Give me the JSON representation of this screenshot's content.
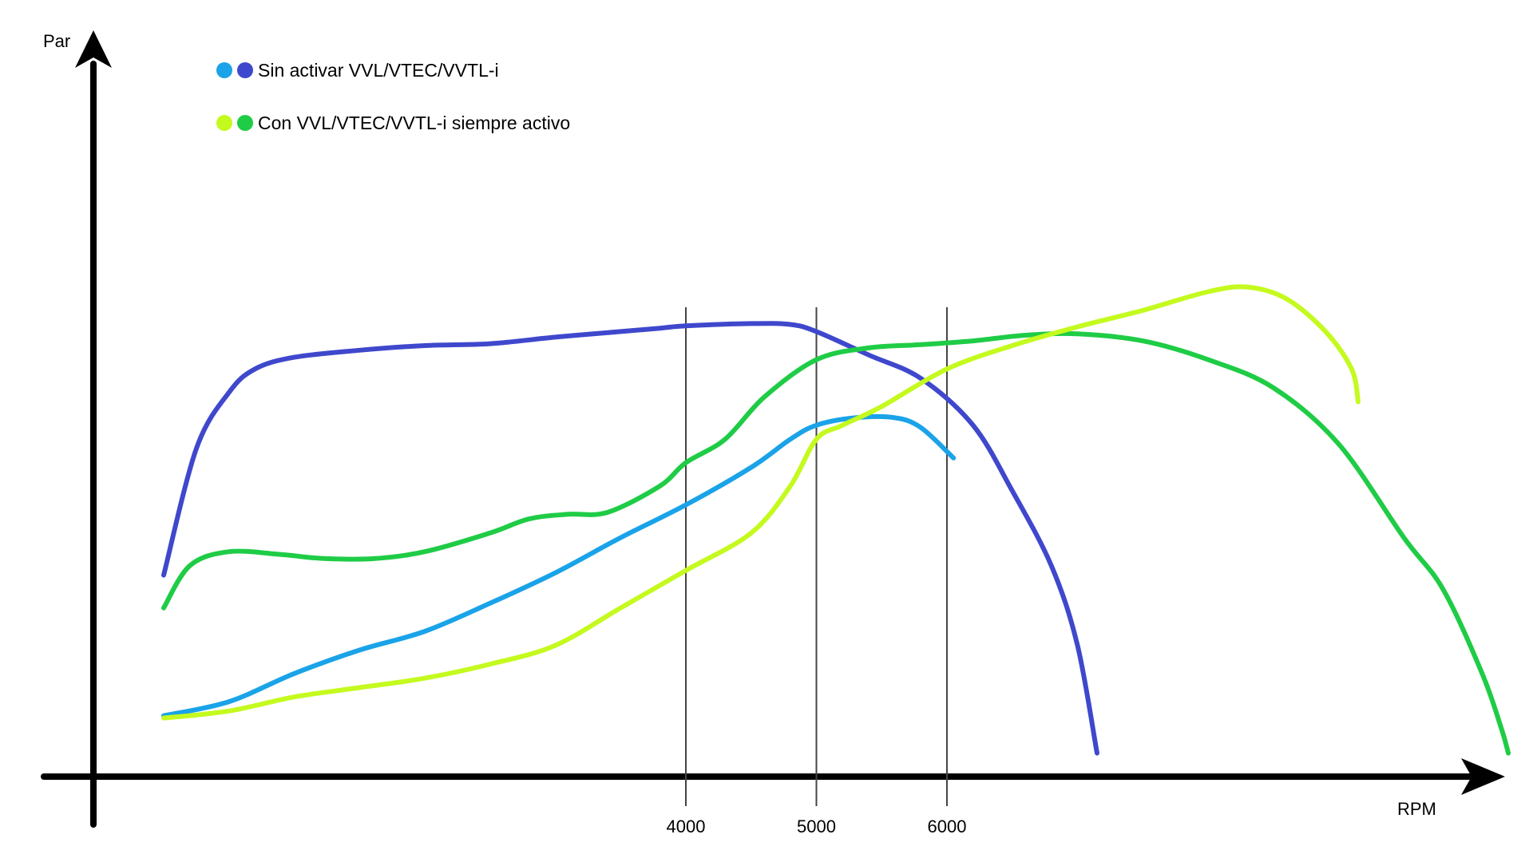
{
  "chart_data": {
    "type": "line",
    "title": "",
    "xlabel": "RPM",
    "ylabel": "Par",
    "xlim": [
      0,
      11000
    ],
    "ylim": [
      0,
      100
    ],
    "grid": false,
    "legend_position": "top-left",
    "x_ticks": [
      {
        "value": 4000,
        "label": "4000"
      },
      {
        "value": 5000,
        "label": "5000"
      },
      {
        "value": 6000,
        "label": "6000"
      }
    ],
    "legend": [
      {
        "label": "Sin activar VVL/VTEC/VVTL-i",
        "colors": [
          "#1aa3e8",
          "#3f48cc"
        ]
      },
      {
        "label": "Con VVL/VTEC/VVTL-i siempre activo",
        "colors": [
          "#c4fa1e",
          "#1fcc46"
        ]
      }
    ],
    "series": [
      {
        "color": "#3f48cc",
        "points": [
          [
            0,
            43
          ],
          [
            250,
            70
          ],
          [
            500,
            82
          ],
          [
            700,
            87
          ],
          [
            1000,
            89.5
          ],
          [
            1500,
            91
          ],
          [
            2000,
            92
          ],
          [
            2500,
            92.4
          ],
          [
            3000,
            93.8
          ],
          [
            3500,
            95
          ],
          [
            3800,
            95.7
          ],
          [
            4000,
            96.2
          ],
          [
            4500,
            96.7
          ],
          [
            4800,
            96.5
          ],
          [
            5000,
            95
          ],
          [
            5400,
            90
          ],
          [
            5800,
            85
          ],
          [
            6200,
            75
          ],
          [
            6500,
            61
          ],
          [
            6800,
            45
          ],
          [
            7000,
            28
          ],
          [
            7150,
            5
          ]
        ]
      },
      {
        "color": "#1aa3e8",
        "points": [
          [
            0,
            13
          ],
          [
            500,
            16
          ],
          [
            1000,
            22
          ],
          [
            1500,
            27
          ],
          [
            2000,
            31
          ],
          [
            2500,
            37
          ],
          [
            3000,
            43.5
          ],
          [
            3500,
            51
          ],
          [
            4000,
            58
          ],
          [
            4500,
            66
          ],
          [
            4800,
            72
          ],
          [
            5000,
            75
          ],
          [
            5300,
            76.6
          ],
          [
            5600,
            76.6
          ],
          [
            5800,
            74.5
          ],
          [
            6050,
            68
          ]
        ]
      },
      {
        "color": "#1fcc46",
        "points": [
          [
            0,
            36
          ],
          [
            200,
            45
          ],
          [
            500,
            48
          ],
          [
            900,
            47.4
          ],
          [
            1200,
            46.6
          ],
          [
            1600,
            46.5
          ],
          [
            2000,
            48
          ],
          [
            2500,
            52
          ],
          [
            2800,
            55
          ],
          [
            3100,
            56
          ],
          [
            3400,
            56.4
          ],
          [
            3800,
            62
          ],
          [
            4000,
            67
          ],
          [
            4300,
            72
          ],
          [
            4600,
            81
          ],
          [
            5000,
            89
          ],
          [
            5400,
            91.5
          ],
          [
            5800,
            92.2
          ],
          [
            6200,
            93
          ],
          [
            6600,
            94.2
          ],
          [
            7000,
            94.5
          ],
          [
            7500,
            93
          ],
          [
            8000,
            89
          ],
          [
            8500,
            83
          ],
          [
            9000,
            71
          ],
          [
            9500,
            51
          ],
          [
            9800,
            40
          ],
          [
            10100,
            22
          ],
          [
            10250,
            10
          ],
          [
            10300,
            5
          ]
        ]
      },
      {
        "color": "#c4fa1e",
        "points": [
          [
            0,
            12.5
          ],
          [
            500,
            14
          ],
          [
            1000,
            17
          ],
          [
            1500,
            19
          ],
          [
            2000,
            21
          ],
          [
            2500,
            24
          ],
          [
            3000,
            28
          ],
          [
            3500,
            36
          ],
          [
            4000,
            44
          ],
          [
            4500,
            52
          ],
          [
            4800,
            62
          ],
          [
            5000,
            72
          ],
          [
            5200,
            75
          ],
          [
            5500,
            79
          ],
          [
            6000,
            87
          ],
          [
            6500,
            92
          ],
          [
            7000,
            96
          ],
          [
            7500,
            99.5
          ],
          [
            8000,
            103.5
          ],
          [
            8300,
            104.5
          ],
          [
            8600,
            102
          ],
          [
            8900,
            95
          ],
          [
            9100,
            87
          ],
          [
            9150,
            80
          ]
        ]
      }
    ]
  }
}
